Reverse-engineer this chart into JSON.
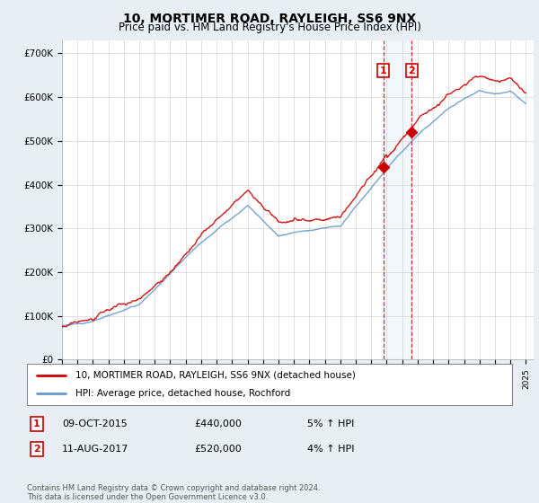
{
  "title": "10, MORTIMER ROAD, RAYLEIGH, SS6 9NX",
  "subtitle": "Price paid vs. HM Land Registry's House Price Index (HPI)",
  "legend_line1": "10, MORTIMER ROAD, RAYLEIGH, SS6 9NX (detached house)",
  "legend_line2": "HPI: Average price, detached house, Rochford",
  "transaction1_date": "09-OCT-2015",
  "transaction1_price": "£440,000",
  "transaction1_hpi": "5% ↑ HPI",
  "transaction2_date": "11-AUG-2017",
  "transaction2_price": "£520,000",
  "transaction2_hpi": "4% ↑ HPI",
  "footer": "Contains HM Land Registry data © Crown copyright and database right 2024.\nThis data is licensed under the Open Government Licence v3.0.",
  "line1_color": "#cc0000",
  "line2_color": "#6699cc",
  "marker1_x": 2015.78,
  "marker1_y": 440000,
  "marker2_x": 2017.62,
  "marker2_y": 520000,
  "vline1_x": 2015.78,
  "vline2_x": 2017.62,
  "ylim": [
    0,
    730000
  ],
  "xlim_start": 1995,
  "xlim_end": 2025.5,
  "background_color": "#e8eef4",
  "plot_bg_color": "#ffffff",
  "grid_color": "#cccccc"
}
